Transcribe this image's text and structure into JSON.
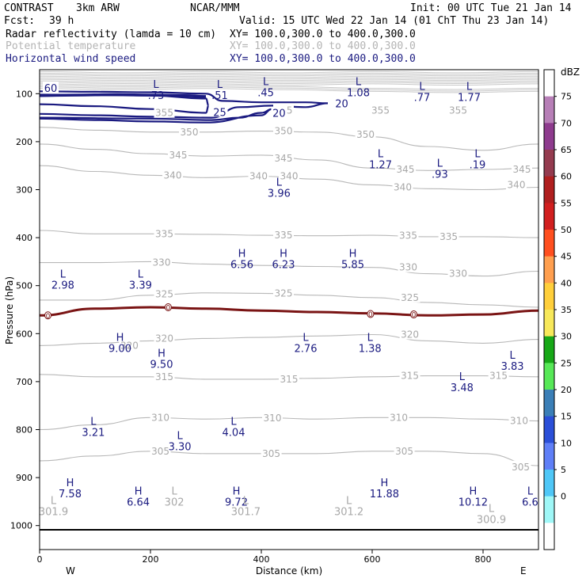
{
  "header": {
    "model": "CONTRAST",
    "resolution": "3km ARW",
    "org": "NCAR/MMM",
    "init": "Init: 00 UTC Tue 21 Jan 14",
    "fcst_label": "Fcst:",
    "fcst_value": "39 h",
    "valid": "Valid: 15 UTC Wed 22 Jan 14 (01 ChT Thu 23 Jan 14)",
    "fields": [
      {
        "name": "Radar reflectivity (lamda = 10 cm)",
        "xy": "XY= 100.0,300.0 to 400.0,300.0",
        "color": "#000000"
      },
      {
        "name": "Potential temperature",
        "xy": "XY= 100.0,300.0 to 400.0,300.0",
        "color": "#b4b4b4"
      },
      {
        "name": "Horizontal wind speed",
        "xy": "XY= 100.0,300.0 to 400.0,300.0",
        "color": "#1a1a80"
      }
    ]
  },
  "colorbar": {
    "unit": "dBZ",
    "levels": [
      "75",
      "70",
      "65",
      "60",
      "55",
      "50",
      "45",
      "40",
      "35",
      "30",
      "25",
      "20",
      "15",
      "10",
      "5",
      "0"
    ],
    "colors": [
      "#ffffff",
      "#b77fb7",
      "#8e3b8e",
      "#943b4f",
      "#b01f1f",
      "#d11f1f",
      "#ff4f1f",
      "#ff9f4f",
      "#ffcf3b",
      "#f7e85a",
      "#17a817",
      "#57e857",
      "#3b7fb7",
      "#2b4fd8",
      "#5f7ff7",
      "#4fc7f7",
      "#9ff7f7",
      "#ffffff"
    ]
  },
  "chart_data": {
    "type": "vertical cross-section contour",
    "xlabel": "Distance (km)",
    "ylabel": "Pressure (hPa)",
    "xlim": [
      0,
      900
    ],
    "ylim": [
      1050,
      50
    ],
    "xticks": [
      "0",
      "200",
      "400",
      "600",
      "800"
    ],
    "xtick_values": [
      0,
      200,
      400,
      600,
      800
    ],
    "yticks": [
      "100",
      "200",
      "300",
      "400",
      "500",
      "600",
      "700",
      "800",
      "900",
      "1000"
    ],
    "ytick_values": [
      100,
      200,
      300,
      400,
      500,
      600,
      700,
      800,
      900,
      1000
    ],
    "west_label": "W",
    "east_label": "E",
    "theta_contours": [
      {
        "label": "350",
        "x_km": [
          0,
          100,
          200,
          300,
          400,
          500,
          600,
          700,
          800,
          900
        ],
        "p_hpa": [
          170,
          176,
          180,
          180,
          178,
          180,
          190,
          210,
          218,
          205
        ]
      },
      {
        "label": "345",
        "x_km": [
          0,
          100,
          200,
          300,
          400,
          500,
          600,
          700,
          800,
          900
        ],
        "p_hpa": [
          205,
          216,
          225,
          230,
          228,
          238,
          255,
          260,
          258,
          255
        ]
      },
      {
        "label": "340",
        "x_km": [
          0,
          100,
          200,
          300,
          400,
          500,
          600,
          700,
          800,
          900
        ],
        "p_hpa": [
          250,
          262,
          270,
          275,
          272,
          278,
          290,
          298,
          300,
          295
        ]
      },
      {
        "label": "335",
        "x_km": [
          0,
          100,
          200,
          300,
          400,
          500,
          600,
          700,
          800,
          900
        ],
        "p_hpa": [
          385,
          392,
          392,
          393,
          395,
          396,
          395,
          398,
          398,
          400
        ]
      },
      {
        "label": "330",
        "x_km": [
          0,
          100,
          200,
          300,
          400,
          500,
          600,
          700,
          800,
          900
        ],
        "p_hpa": [
          452,
          452,
          450,
          455,
          458,
          460,
          462,
          475,
          480,
          470
        ]
      },
      {
        "label": "325",
        "x_km": [
          0,
          100,
          200,
          300,
          400,
          500,
          600,
          700,
          800,
          900
        ],
        "p_hpa": [
          530,
          530,
          520,
          515,
          516,
          520,
          525,
          535,
          540,
          545
        ]
      },
      {
        "label": "320",
        "x_km": [
          0,
          100,
          200,
          300,
          400,
          500,
          600,
          700,
          800,
          900
        ],
        "p_hpa": [
          625,
          620,
          615,
          610,
          608,
          605,
          602,
          615,
          620,
          612
        ]
      },
      {
        "label": "315",
        "x_km": [
          0,
          100,
          200,
          300,
          400,
          500,
          600,
          700,
          800,
          900
        ],
        "p_hpa": [
          685,
          690,
          690,
          695,
          695,
          693,
          690,
          688,
          688,
          690
        ]
      },
      {
        "label": "310",
        "x_km": [
          0,
          100,
          200,
          300,
          400,
          500,
          600,
          700,
          800,
          900
        ],
        "p_hpa": [
          800,
          790,
          775,
          778,
          775,
          778,
          775,
          775,
          778,
          782
        ]
      },
      {
        "label": "305",
        "x_km": [
          0,
          100,
          200,
          300,
          400,
          500,
          600,
          700,
          800,
          900
        ],
        "p_hpa": [
          865,
          855,
          845,
          850,
          850,
          850,
          845,
          845,
          850,
          875
        ]
      }
    ],
    "theta_labels": [
      {
        "text": "355",
        "x_km": 225,
        "p_hpa": 140
      },
      {
        "text": "355",
        "x_km": 440,
        "p_hpa": 135
      },
      {
        "text": "355",
        "x_km": 615,
        "p_hpa": 135
      },
      {
        "text": "355",
        "x_km": 755,
        "p_hpa": 135
      },
      {
        "text": "350",
        "x_km": 270,
        "p_hpa": 180
      },
      {
        "text": "350",
        "x_km": 440,
        "p_hpa": 178
      },
      {
        "text": "350",
        "x_km": 588,
        "p_hpa": 185
      },
      {
        "text": "345",
        "x_km": 250,
        "p_hpa": 228
      },
      {
        "text": "345",
        "x_km": 440,
        "p_hpa": 235
      },
      {
        "text": "345",
        "x_km": 660,
        "p_hpa": 258
      },
      {
        "text": "345",
        "x_km": 870,
        "p_hpa": 258
      },
      {
        "text": "340",
        "x_km": 240,
        "p_hpa": 270
      },
      {
        "text": "340",
        "x_km": 395,
        "p_hpa": 272
      },
      {
        "text": "340",
        "x_km": 450,
        "p_hpa": 272
      },
      {
        "text": "340",
        "x_km": 655,
        "p_hpa": 295
      },
      {
        "text": "340",
        "x_km": 860,
        "p_hpa": 290
      },
      {
        "text": "335",
        "x_km": 225,
        "p_hpa": 392
      },
      {
        "text": "335",
        "x_km": 440,
        "p_hpa": 395
      },
      {
        "text": "335",
        "x_km": 665,
        "p_hpa": 396
      },
      {
        "text": "335",
        "x_km": 738,
        "p_hpa": 398
      },
      {
        "text": "330",
        "x_km": 220,
        "p_hpa": 452
      },
      {
        "text": "330",
        "x_km": 665,
        "p_hpa": 462
      },
      {
        "text": "330",
        "x_km": 755,
        "p_hpa": 475
      },
      {
        "text": "325",
        "x_km": 225,
        "p_hpa": 518
      },
      {
        "text": "325",
        "x_km": 440,
        "p_hpa": 516
      },
      {
        "text": "325",
        "x_km": 668,
        "p_hpa": 525
      },
      {
        "text": "320",
        "x_km": 162,
        "p_hpa": 625
      },
      {
        "text": "320",
        "x_km": 225,
        "p_hpa": 610
      },
      {
        "text": "320",
        "x_km": 668,
        "p_hpa": 602
      },
      {
        "text": "315",
        "x_km": 225,
        "p_hpa": 690
      },
      {
        "text": "315",
        "x_km": 450,
        "p_hpa": 695
      },
      {
        "text": "315",
        "x_km": 668,
        "p_hpa": 688
      },
      {
        "text": "315",
        "x_km": 828,
        "p_hpa": 688
      },
      {
        "text": "310",
        "x_km": 218,
        "p_hpa": 775
      },
      {
        "text": "310",
        "x_km": 420,
        "p_hpa": 776
      },
      {
        "text": "310",
        "x_km": 648,
        "p_hpa": 775
      },
      {
        "text": "310",
        "x_km": 865,
        "p_hpa": 782
      },
      {
        "text": "305",
        "x_km": 218,
        "p_hpa": 845
      },
      {
        "text": "305",
        "x_km": 418,
        "p_hpa": 850
      },
      {
        "text": "305",
        "x_km": 658,
        "p_hpa": 845
      },
      {
        "text": "305",
        "x_km": 868,
        "p_hpa": 878
      }
    ],
    "wind_contours": [
      {
        "label": "25",
        "x_km": [
          0,
          100,
          200,
          300,
          305,
          300,
          200,
          100,
          0
        ],
        "p_hpa": [
          102,
          103,
          104,
          110,
          125,
          140,
          132,
          126,
          122
        ]
      },
      {
        "label": "20",
        "x_km": [
          0,
          100,
          200,
          300,
          330,
          400,
          480,
          520,
          480,
          420,
          360,
          310,
          200,
          100,
          0
        ],
        "p_hpa": [
          95,
          96,
          97,
          100,
          115,
          118,
          118,
          120,
          128,
          125,
          128,
          150,
          148,
          145,
          142
        ]
      },
      {
        "label": "20",
        "x_km": [
          0,
          200,
          310,
          360,
          400,
          420,
          400,
          300,
          200,
          100,
          0
        ],
        "p_hpa": [
          150,
          152,
          155,
          150,
          140,
          132,
          145,
          160,
          158,
          155,
          152
        ]
      }
    ],
    "wind_labels": [
      {
        "text": "60",
        "x_km": 20,
        "p_hpa": 88
      },
      {
        "text": "25",
        "x_km": 325,
        "p_hpa": 138
      },
      {
        "text": "20",
        "x_km": 545,
        "p_hpa": 120
      },
      {
        "text": "20",
        "x_km": 432,
        "p_hpa": 140
      }
    ],
    "reflectivity_zero_contour": {
      "label": "0",
      "x_km": [
        0,
        100,
        200,
        300,
        400,
        500,
        600,
        700,
        800,
        900
      ],
      "p_hpa": [
        562,
        548,
        545,
        548,
        552,
        555,
        558,
        562,
        560,
        552
      ]
    },
    "reflectivity_zero_markers": [
      {
        "x_km": 15,
        "p_hpa": 562
      },
      {
        "x_km": 232,
        "p_hpa": 545
      },
      {
        "x_km": 597,
        "p_hpa": 559
      },
      {
        "x_km": 675,
        "p_hpa": 560
      }
    ],
    "highs_lows": [
      {
        "type": "L",
        "value": ".73",
        "x_km": 210,
        "p_hpa": 88,
        "color": "blue"
      },
      {
        "type": "L",
        "value": ".51",
        "x_km": 325,
        "p_hpa": 88,
        "color": "blue"
      },
      {
        "type": "L",
        "value": ".45",
        "x_km": 408,
        "p_hpa": 82,
        "color": "blue"
      },
      {
        "type": "L",
        "value": "1.08",
        "x_km": 575,
        "p_hpa": 82,
        "color": "blue"
      },
      {
        "type": "L",
        "value": ".77",
        "x_km": 690,
        "p_hpa": 92,
        "color": "blue"
      },
      {
        "type": "L",
        "value": "1.77",
        "x_km": 775,
        "p_hpa": 92,
        "color": "blue"
      },
      {
        "type": "L",
        "value": "1.27",
        "x_km": 615,
        "p_hpa": 232,
        "color": "blue"
      },
      {
        "type": "L",
        "value": ".93",
        "x_km": 722,
        "p_hpa": 252,
        "color": "blue"
      },
      {
        "type": "L",
        "value": ".19",
        "x_km": 790,
        "p_hpa": 232,
        "color": "blue"
      },
      {
        "type": "L",
        "value": "3.96",
        "x_km": 432,
        "p_hpa": 292,
        "color": "blue"
      },
      {
        "type": "H",
        "value": "6.56",
        "x_km": 365,
        "p_hpa": 440,
        "color": "blue"
      },
      {
        "type": "H",
        "value": "6.23",
        "x_km": 440,
        "p_hpa": 440,
        "color": "blue"
      },
      {
        "type": "H",
        "value": "5.85",
        "x_km": 565,
        "p_hpa": 440,
        "color": "blue"
      },
      {
        "type": "L",
        "value": "2.98",
        "x_km": 42,
        "p_hpa": 483,
        "color": "blue"
      },
      {
        "type": "L",
        "value": "3.39",
        "x_km": 182,
        "p_hpa": 483,
        "color": "blue"
      },
      {
        "type": "H",
        "value": "9.00",
        "x_km": 145,
        "p_hpa": 615,
        "color": "blue"
      },
      {
        "type": "L",
        "value": "2.76",
        "x_km": 480,
        "p_hpa": 615,
        "color": "blue"
      },
      {
        "type": "L",
        "value": "1.38",
        "x_km": 596,
        "p_hpa": 615,
        "color": "blue"
      },
      {
        "type": "H",
        "value": "9.50",
        "x_km": 220,
        "p_hpa": 648,
        "color": "blue"
      },
      {
        "type": "L",
        "value": "3.83",
        "x_km": 853,
        "p_hpa": 652,
        "color": "blue"
      },
      {
        "type": "L",
        "value": "3.48",
        "x_km": 762,
        "p_hpa": 697,
        "color": "blue"
      },
      {
        "type": "L",
        "value": "3.21",
        "x_km": 97,
        "p_hpa": 790,
        "color": "blue"
      },
      {
        "type": "L",
        "value": "4.04",
        "x_km": 350,
        "p_hpa": 790,
        "color": "blue"
      },
      {
        "type": "L",
        "value": "3.30",
        "x_km": 253,
        "p_hpa": 820,
        "color": "blue"
      },
      {
        "type": "H",
        "value": "7.58",
        "x_km": 55,
        "p_hpa": 918,
        "color": "blue"
      },
      {
        "type": "H",
        "value": "6.64",
        "x_km": 178,
        "p_hpa": 935,
        "color": "blue"
      },
      {
        "type": "H",
        "value": "9.72",
        "x_km": 355,
        "p_hpa": 935,
        "color": "blue"
      },
      {
        "type": "H",
        "value": "11.88",
        "x_km": 622,
        "p_hpa": 918,
        "color": "blue"
      },
      {
        "type": "H",
        "value": "10.12",
        "x_km": 782,
        "p_hpa": 935,
        "color": "blue"
      },
      {
        "type": "L",
        "value": "6.6",
        "x_km": 885,
        "p_hpa": 935,
        "color": "blue"
      },
      {
        "type": "L",
        "value": "301.9",
        "x_km": 25,
        "p_hpa": 955,
        "color": "gray"
      },
      {
        "type": "L",
        "value": "302",
        "x_km": 243,
        "p_hpa": 935,
        "color": "gray"
      },
      {
        "type": "L",
        "value": "301.7",
        "x_km": 372,
        "p_hpa": 955,
        "color": "gray"
      },
      {
        "type": "L",
        "value": "301.2",
        "x_km": 558,
        "p_hpa": 955,
        "color": "gray"
      },
      {
        "type": "L",
        "value": "300.9",
        "x_km": 815,
        "p_hpa": 972,
        "color": "gray"
      }
    ]
  }
}
